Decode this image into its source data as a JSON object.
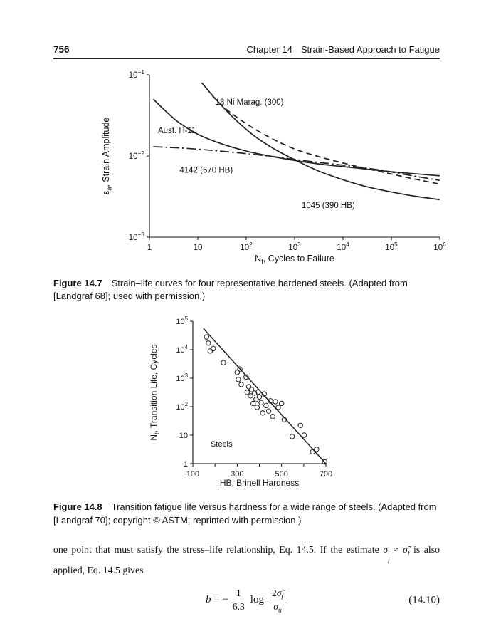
{
  "page": {
    "number": "756",
    "header_chapter": "Chapter 14",
    "header_title": "Strain-Based Approach to Fatigue"
  },
  "figures": {
    "fig14_7": {
      "caption": [
        {
          "t": "Figure 14.7",
          "b": true
        },
        {
          "t": "  Strain–life curves for four representative hardened steels. (Adapted from [Landgraf 68]; used with permission.)"
        }
      ]
    },
    "fig14_8": {
      "caption": [
        {
          "t": "Figure 14.8",
          "b": true
        },
        {
          "t": "  Transition fatigue life versus hardness for a wide range of steels. (Adapted from [Landgraf 70]; copyright © ASTM; reprinted with permission.)"
        }
      ]
    }
  },
  "paragraph": [
    {
      "t": "one point that must satisfy the stress–life relationship, Eq. 14.5. If the estimate "
    },
    {
      "t": "σ",
      "i": true
    },
    {
      "sup": "′",
      "sub": "f"
    },
    {
      "t": " ≈ "
    },
    {
      "t": "σ̃",
      "i": true
    },
    {
      "t": "f",
      "sub": true,
      "i": true
    },
    {
      "t": " is also applied, Eq. 14.5 gives"
    }
  ],
  "equation": {
    "lhs": [
      {
        "t": "b",
        "i": true
      },
      {
        "t": " = −"
      }
    ],
    "frac1_num": "1",
    "frac1_den": "6.3",
    "log_label": "log",
    "frac2_num": [
      {
        "t": "2"
      },
      {
        "t": "σ̃",
        "i": true
      },
      {
        "t": "f",
        "sub": true,
        "i": true
      }
    ],
    "frac2_den": [
      {
        "t": "σ",
        "i": true
      },
      {
        "t": "u",
        "sub": true,
        "i": true
      }
    ],
    "number": "(14.10)"
  },
  "chart_data": [
    {
      "id": "fig14_7",
      "type": "line",
      "title": "",
      "xscale": "log",
      "yscale": "log",
      "xlim": [
        1,
        1000000
      ],
      "ylim": [
        0.001,
        0.1
      ],
      "grid": false,
      "legend_position": "none",
      "xlabel": [
        {
          "t": "N"
        },
        {
          "t": "f",
          "sub": true
        },
        {
          "t": ", Cycles to Failure"
        }
      ],
      "ylabel": [
        {
          "t": "ε"
        },
        {
          "t": "a",
          "sub": true
        },
        {
          "t": ", Strain Amplitude"
        }
      ],
      "xticks": [
        {
          "v": 1,
          "l": "1"
        },
        {
          "v": 10,
          "l": "10"
        },
        {
          "v": 100,
          "l": "10^2"
        },
        {
          "v": 1000,
          "l": "10^3"
        },
        {
          "v": 10000,
          "l": "10^4"
        },
        {
          "v": 100000,
          "l": "10^5"
        },
        {
          "v": 1000000,
          "l": "10^6"
        }
      ],
      "yticks": [
        {
          "v": 0.1,
          "l": "10^−1"
        },
        {
          "v": 0.01,
          "l": "10^−2"
        },
        {
          "v": 0.001,
          "l": "10^−3"
        }
      ],
      "series": [
        {
          "name": "Ausf. H-11",
          "style": "solid",
          "points": [
            [
              1.2,
              0.05
            ],
            [
              2.5,
              0.033
            ],
            [
              4,
              0.026
            ],
            [
              10,
              0.0185
            ],
            [
              30,
              0.0142
            ],
            [
              100,
              0.0115
            ],
            [
              300,
              0.01
            ],
            [
              1000,
              0.0088
            ],
            [
              3000,
              0.008
            ],
            [
              10000,
              0.0074
            ],
            [
              100000,
              0.0064
            ],
            [
              1000000,
              0.0057
            ]
          ]
        },
        {
          "name": "18 Ni Marag. (300)",
          "style": "dashed",
          "points": [
            [
              20,
              0.055
            ],
            [
              40,
              0.037
            ],
            [
              100,
              0.025
            ],
            [
              300,
              0.017
            ],
            [
              1000,
              0.0122
            ],
            [
              3000,
              0.0099
            ],
            [
              10000,
              0.0082
            ],
            [
              30000,
              0.007
            ],
            [
              100000,
              0.006
            ],
            [
              300000,
              0.0052
            ],
            [
              1000000,
              0.0045
            ]
          ]
        },
        {
          "name": "4142 (670 HB)",
          "style": "dashdot",
          "points": [
            [
              1.2,
              0.013
            ],
            [
              5,
              0.0125
            ],
            [
              20,
              0.0117
            ],
            [
              100,
              0.0107
            ],
            [
              500,
              0.0096
            ],
            [
              2000,
              0.0086
            ],
            [
              10000,
              0.0077
            ],
            [
              50000,
              0.0068
            ],
            [
              200000,
              0.0059
            ],
            [
              1000000,
              0.005
            ]
          ]
        },
        {
          "name": "1045 (390 HB)",
          "style": "solid",
          "points": [
            [
              12,
              0.08
            ],
            [
              25,
              0.048
            ],
            [
              60,
              0.028
            ],
            [
              150,
              0.0175
            ],
            [
              400,
              0.012
            ],
            [
              1000,
              0.009
            ],
            [
              3000,
              0.0066
            ],
            [
              10000,
              0.0051
            ],
            [
              30000,
              0.0042
            ],
            [
              100000,
              0.0036
            ],
            [
              300000,
              0.0032
            ],
            [
              1000000,
              0.0029
            ]
          ]
        }
      ],
      "annotations": [
        {
          "text": "18 Ni Marag. (300)",
          "x": 23,
          "y": 0.043,
          "anchor": "start"
        },
        {
          "text": "Ausf. H-11",
          "x": 1.5,
          "y": 0.019,
          "anchor": "start"
        },
        {
          "text": "4142 (670 HB)",
          "x": 4.2,
          "y": 0.0062,
          "anchor": "start"
        },
        {
          "text": "1045 (390 HB)",
          "x": 1400,
          "y": 0.0023,
          "anchor": "start"
        }
      ]
    },
    {
      "id": "fig14_8",
      "type": "scatter",
      "title": "",
      "xscale": "linear",
      "yscale": "log",
      "xlim": [
        100,
        700
      ],
      "ylim": [
        1,
        100000
      ],
      "grid": false,
      "legend_position": "none",
      "xlabel": [
        {
          "t": "HB, Brinell Hardness"
        }
      ],
      "ylabel": [
        {
          "t": "N"
        },
        {
          "t": "t",
          "sub": true
        },
        {
          "t": ", Transition Life, Cycles"
        }
      ],
      "xticks": [
        {
          "v": 100,
          "l": "100"
        },
        {
          "v": 200,
          "l": ""
        },
        {
          "v": 300,
          "l": "300"
        },
        {
          "v": 400,
          "l": ""
        },
        {
          "v": 500,
          "l": "500"
        },
        {
          "v": 600,
          "l": ""
        },
        {
          "v": 700,
          "l": "700"
        }
      ],
      "yticks": [
        {
          "v": 1,
          "l": "1"
        },
        {
          "v": 10,
          "l": "10"
        },
        {
          "v": 100,
          "l": "10^2"
        },
        {
          "v": 1000,
          "l": "10^3"
        },
        {
          "v": 10000,
          "l": "10^4"
        },
        {
          "v": 100000,
          "l": "10^5"
        }
      ],
      "series": [
        {
          "name": "steel data points",
          "style": "scatter",
          "points": [
            [
              162,
              28000
            ],
            [
              170,
              17000
            ],
            [
              178,
              9000
            ],
            [
              192,
              11000
            ],
            [
              238,
              3500
            ],
            [
              300,
              1600
            ],
            [
              305,
              900
            ],
            [
              312,
              2100
            ],
            [
              318,
              600
            ],
            [
              340,
              1100
            ],
            [
              345,
              320
            ],
            [
              352,
              500
            ],
            [
              360,
              240
            ],
            [
              365,
              400
            ],
            [
              372,
              130
            ],
            [
              378,
              300
            ],
            [
              385,
              180
            ],
            [
              390,
              95
            ],
            [
              395,
              330
            ],
            [
              400,
              220
            ],
            [
              408,
              140
            ],
            [
              415,
              60
            ],
            [
              422,
              280
            ],
            [
              430,
              110
            ],
            [
              442,
              70
            ],
            [
              450,
              160
            ],
            [
              460,
              45
            ],
            [
              472,
              150
            ],
            [
              485,
              95
            ],
            [
              500,
              130
            ],
            [
              512,
              35
            ],
            [
              548,
              9
            ],
            [
              585,
              22
            ],
            [
              602,
              10
            ],
            [
              640,
              2.6
            ],
            [
              658,
              3.2
            ],
            [
              695,
              1.15
            ]
          ]
        },
        {
          "name": "trend line",
          "style": "solid",
          "points": [
            [
              148,
              55000
            ],
            [
              700,
              1
            ]
          ]
        }
      ],
      "annotations": [
        {
          "text": "Steels",
          "x": 180,
          "y": 4,
          "anchor": "start"
        }
      ]
    }
  ]
}
